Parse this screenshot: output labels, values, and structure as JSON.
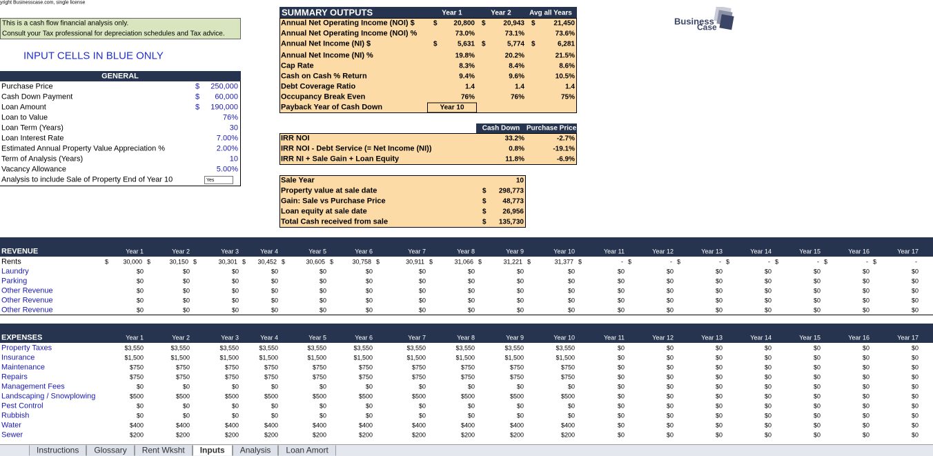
{
  "copyright": "yright Businesscase.com, single license",
  "note": [
    "This is a cash flow financial analysis only.",
    "Consult your Tax professional for depreciation schedules and Tax advice."
  ],
  "input_notice": "INPUT CELLS IN BLUE ONLY",
  "logo": [
    "Business",
    "Case"
  ],
  "general": {
    "title": "GENERAL",
    "currency": "$",
    "rows": [
      {
        "label": "Purchase Price",
        "value": "250,000",
        "currency": true
      },
      {
        "label": "Cash Down Payment",
        "value": "60,000",
        "currency": true
      },
      {
        "label": "Loan Amount",
        "value": "190,000",
        "currency": true
      },
      {
        "label": "Loan to Value",
        "value": "76%"
      },
      {
        "label": "Loan Term (Years)",
        "value": "30"
      },
      {
        "label": "Loan Interest Rate",
        "value": "7.00%"
      },
      {
        "label": "Estimated Annual Property Value Appreciation %",
        "value": "2.00%"
      },
      {
        "label": "Term of Analysis (Years)",
        "value": "10"
      },
      {
        "label": "Vacancy Allowance",
        "value": "5.00%"
      },
      {
        "label": "Analysis to include Sale of Property End of Year 10",
        "value": "Yes"
      }
    ]
  },
  "summary": {
    "title": "SUMMARY OUTPUTS",
    "columns": [
      "Year 1",
      "Year 2",
      "Avg all Years"
    ],
    "currency": "$",
    "rows": [
      {
        "label": "Annual Net Operating Income (NOI) $",
        "cells": [
          "20,800",
          "20,943",
          "21,450"
        ],
        "currency": true
      },
      {
        "label": "Annual Net Operating Income (NOI) %",
        "cells": [
          "73.0%",
          "73.1%",
          "73.6%"
        ]
      },
      {
        "label": "Annual Net Income (NI) $",
        "cells": [
          "5,631",
          "5,774",
          "6,281"
        ],
        "currency": true
      },
      {
        "label": "Annual Net Income (NI) %",
        "cells": [
          "19.8%",
          "20.2%",
          "21.5%"
        ]
      },
      {
        "label": "Cap Rate",
        "cells": [
          "8.3%",
          "8.4%",
          "8.6%"
        ]
      },
      {
        "label": "Cash on Cash % Return",
        "cells": [
          "9.4%",
          "9.6%",
          "10.5%"
        ]
      },
      {
        "label": "Debt Coverage Ratio",
        "cells": [
          "1.4",
          "1.4",
          "1.4"
        ]
      },
      {
        "label": "Occupancy Break Even",
        "cells": [
          "76%",
          "76%",
          "75%"
        ]
      },
      {
        "label": "Payback Year of Cash Down",
        "cells": [
          "Year 10"
        ]
      }
    ]
  },
  "irr": {
    "columns": [
      "Cash Down",
      "Purchase Price"
    ],
    "rows": [
      {
        "label": "IRR NOI",
        "cells": [
          "33.2%",
          "-2.7%"
        ]
      },
      {
        "label": "IRR NOI - Debt Service (= Net Income (NI))",
        "cells": [
          "0.8%",
          "-19.1%"
        ]
      },
      {
        "label": "IRR NI + Sale Gain + Loan Equity",
        "cells": [
          "11.8%",
          "-6.9%"
        ]
      }
    ]
  },
  "sale": {
    "currency": "$",
    "rows": [
      {
        "label": "Sale Year",
        "value": "10"
      },
      {
        "label": "Property value at sale date",
        "value": "298,773",
        "currency": true
      },
      {
        "label": "Gain: Sale vs Purchase Price",
        "value": "48,773",
        "currency": true
      },
      {
        "label": "Loan equity at sale date",
        "value": "26,956",
        "currency": true
      },
      {
        "label": "Total Cash received from sale",
        "value": "135,730",
        "currency": true
      }
    ]
  },
  "years": [
    "Year 1",
    "Year 2",
    "Year 3",
    "Year 4",
    "Year 5",
    "Year 6",
    "Year 7",
    "Year 8",
    "Year 9",
    "Year 10",
    "Year 11",
    "Year 12",
    "Year 13",
    "Year 14",
    "Year 15",
    "Year 16",
    "Year 17"
  ],
  "revenue": {
    "title": "REVENUE",
    "currency": "$",
    "rows": [
      {
        "label": "Rents",
        "currency": true,
        "cells": [
          "30,000",
          "30,150",
          "30,301",
          "30,452",
          "30,605",
          "30,758",
          "30,911",
          "31,066",
          "31,221",
          "31,377",
          "-",
          "-",
          "-",
          "-",
          "-",
          "-",
          "-"
        ]
      },
      {
        "label": "Laundry",
        "cells": [
          "$0",
          "$0",
          "$0",
          "$0",
          "$0",
          "$0",
          "$0",
          "$0",
          "$0",
          "$0",
          "$0",
          "$0",
          "$0",
          "$0",
          "$0",
          "$0",
          "$0"
        ]
      },
      {
        "label": "Parking",
        "cells": [
          "$0",
          "$0",
          "$0",
          "$0",
          "$0",
          "$0",
          "$0",
          "$0",
          "$0",
          "$0",
          "$0",
          "$0",
          "$0",
          "$0",
          "$0",
          "$0",
          "$0"
        ]
      },
      {
        "label": "Other Revenue",
        "cells": [
          "$0",
          "$0",
          "$0",
          "$0",
          "$0",
          "$0",
          "$0",
          "$0",
          "$0",
          "$0",
          "$0",
          "$0",
          "$0",
          "$0",
          "$0",
          "$0",
          "$0"
        ]
      },
      {
        "label": "Other Revenue",
        "cells": [
          "$0",
          "$0",
          "$0",
          "$0",
          "$0",
          "$0",
          "$0",
          "$0",
          "$0",
          "$0",
          "$0",
          "$0",
          "$0",
          "$0",
          "$0",
          "$0",
          "$0"
        ]
      },
      {
        "label": "Other Revenue",
        "cells": [
          "$0",
          "$0",
          "$0",
          "$0",
          "$0",
          "$0",
          "$0",
          "$0",
          "$0",
          "$0",
          "$0",
          "$0",
          "$0",
          "$0",
          "$0",
          "$0",
          "$0"
        ]
      }
    ]
  },
  "expenses": {
    "title": "EXPENSES",
    "rows": [
      {
        "label": "Property Taxes",
        "cells": [
          "$3,550",
          "$3,550",
          "$3,550",
          "$3,550",
          "$3,550",
          "$3,550",
          "$3,550",
          "$3,550",
          "$3,550",
          "$3,550",
          "$0",
          "$0",
          "$0",
          "$0",
          "$0",
          "$0",
          "$0"
        ]
      },
      {
        "label": "Insurance",
        "cells": [
          "$1,500",
          "$1,500",
          "$1,500",
          "$1,500",
          "$1,500",
          "$1,500",
          "$1,500",
          "$1,500",
          "$1,500",
          "$1,500",
          "$0",
          "$0",
          "$0",
          "$0",
          "$0",
          "$0",
          "$0"
        ]
      },
      {
        "label": "Maintenance",
        "cells": [
          "$750",
          "$750",
          "$750",
          "$750",
          "$750",
          "$750",
          "$750",
          "$750",
          "$750",
          "$750",
          "$0",
          "$0",
          "$0",
          "$0",
          "$0",
          "$0",
          "$0"
        ]
      },
      {
        "label": "Repairs",
        "cells": [
          "$750",
          "$750",
          "$750",
          "$750",
          "$750",
          "$750",
          "$750",
          "$750",
          "$750",
          "$750",
          "$0",
          "$0",
          "$0",
          "$0",
          "$0",
          "$0",
          "$0"
        ]
      },
      {
        "label": "Management Fees",
        "cells": [
          "$0",
          "$0",
          "$0",
          "$0",
          "$0",
          "$0",
          "$0",
          "$0",
          "$0",
          "$0",
          "$0",
          "$0",
          "$0",
          "$0",
          "$0",
          "$0",
          "$0"
        ]
      },
      {
        "label": "Landscaping / Snowplowing",
        "cells": [
          "$500",
          "$500",
          "$500",
          "$500",
          "$500",
          "$500",
          "$500",
          "$500",
          "$500",
          "$500",
          "$0",
          "$0",
          "$0",
          "$0",
          "$0",
          "$0",
          "$0"
        ]
      },
      {
        "label": "Pest Control",
        "cells": [
          "$0",
          "$0",
          "$0",
          "$0",
          "$0",
          "$0",
          "$0",
          "$0",
          "$0",
          "$0",
          "$0",
          "$0",
          "$0",
          "$0",
          "$0",
          "$0",
          "$0"
        ]
      },
      {
        "label": "Rubbish",
        "cells": [
          "$0",
          "$0",
          "$0",
          "$0",
          "$0",
          "$0",
          "$0",
          "$0",
          "$0",
          "$0",
          "$0",
          "$0",
          "$0",
          "$0",
          "$0",
          "$0",
          "$0"
        ]
      },
      {
        "label": "Water",
        "cells": [
          "$400",
          "$400",
          "$400",
          "$400",
          "$400",
          "$400",
          "$400",
          "$400",
          "$400",
          "$400",
          "$0",
          "$0",
          "$0",
          "$0",
          "$0",
          "$0",
          "$0"
        ]
      },
      {
        "label": "Sewer",
        "cells": [
          "$200",
          "$200",
          "$200",
          "$200",
          "$200",
          "$200",
          "$200",
          "$200",
          "$200",
          "$200",
          "$0",
          "$0",
          "$0",
          "$0",
          "$0",
          "$0",
          "$0"
        ]
      }
    ]
  },
  "tabs": [
    "Instructions",
    "Glossary",
    "Rent Wksht",
    "Inputs",
    "Analysis",
    "Loan Amort"
  ],
  "active_tab": "Inputs"
}
